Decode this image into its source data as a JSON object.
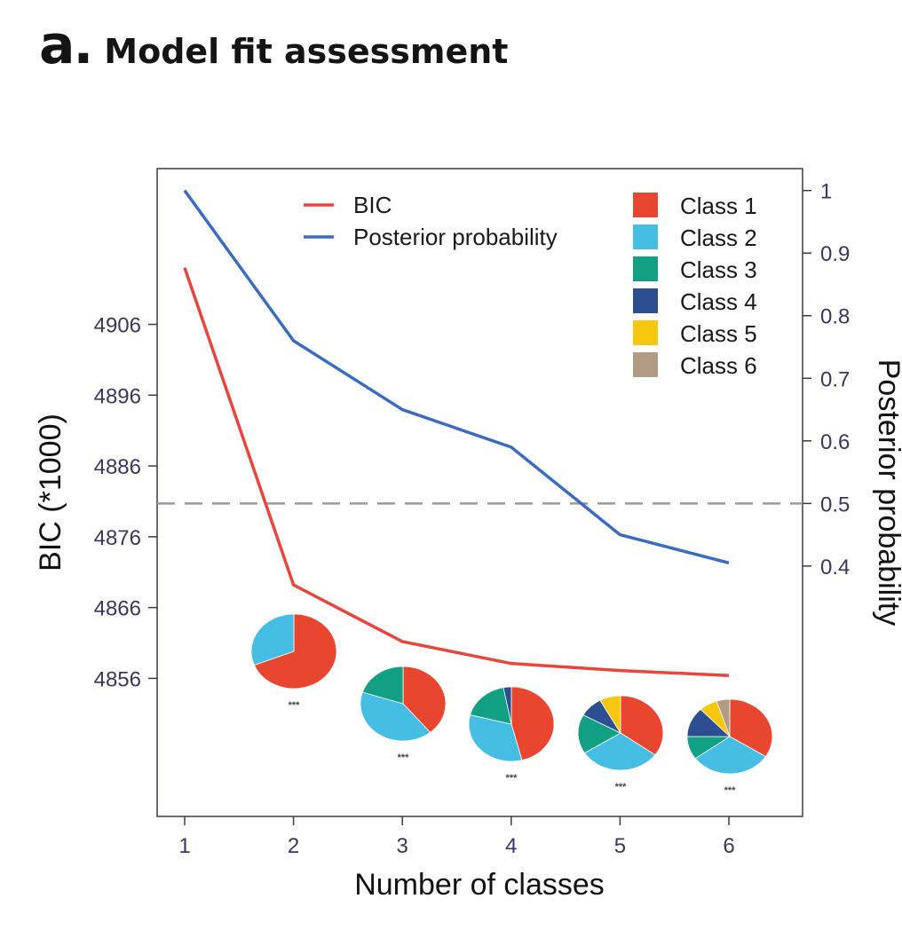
{
  "panel": {
    "letter": "a.",
    "title": "Model fit assessment"
  },
  "chart_data": {
    "type": "line",
    "x": [
      1,
      2,
      3,
      4,
      5,
      6
    ],
    "xlabel": "Number of classes",
    "xticks": [
      "1",
      "2",
      "3",
      "4",
      "5",
      "6"
    ],
    "ylabel_left": "BIC (*1000)",
    "ylim_left": [
      4836.5,
      4928
    ],
    "yticks_left": [
      4856,
      4866,
      4876,
      4886,
      4896,
      4906
    ],
    "ylabel_right": "Posterior probability",
    "ylim_right": [
      0.0,
      1.035
    ],
    "yticks_right": [
      0.4,
      0.5,
      0.6,
      0.7,
      0.8,
      0.9,
      1
    ],
    "ytick_labels_right": [
      "0.4",
      "0.5",
      "0.6",
      "0.7",
      "0.8",
      "0.9",
      "1"
    ],
    "reference_line": {
      "axis": "right",
      "value": 0.5,
      "style": "dashed",
      "color": "#9a9a9a"
    },
    "series": [
      {
        "name": "BIC",
        "axis": "left",
        "color": "#e8453c",
        "values": [
          4914,
          4869.2,
          4861.2,
          4858.1,
          4857.1,
          4856.4
        ]
      },
      {
        "name": "Posterior probability",
        "axis": "right",
        "color": "#3b6cbf",
        "values": [
          1.0,
          0.76,
          0.65,
          0.59,
          0.45,
          0.405
        ]
      }
    ],
    "class_legend": [
      {
        "name": "Class 1",
        "color": "#e8462e"
      },
      {
        "name": "Class 2",
        "color": "#46bde2"
      },
      {
        "name": "Class 3",
        "color": "#11a083"
      },
      {
        "name": "Class 4",
        "color": "#2c4f92"
      },
      {
        "name": "Class 5",
        "color": "#f6c70c"
      },
      {
        "name": "Class 6",
        "color": "#b19c83"
      }
    ],
    "pies": [
      {
        "classes": 2,
        "label": "***",
        "slices": [
          0.69,
          0.31
        ]
      },
      {
        "classes": 3,
        "label": "***",
        "slices": [
          0.39,
          0.41,
          0.2
        ]
      },
      {
        "classes": 4,
        "label": "***",
        "slices": [
          0.46,
          0.33,
          0.18,
          0.03
        ]
      },
      {
        "classes": 5,
        "label": "***",
        "slices": [
          0.35,
          0.31,
          0.17,
          0.09,
          0.08
        ]
      },
      {
        "classes": 6,
        "label": "***",
        "slices": [
          0.34,
          0.31,
          0.1,
          0.13,
          0.07,
          0.05
        ]
      }
    ]
  }
}
